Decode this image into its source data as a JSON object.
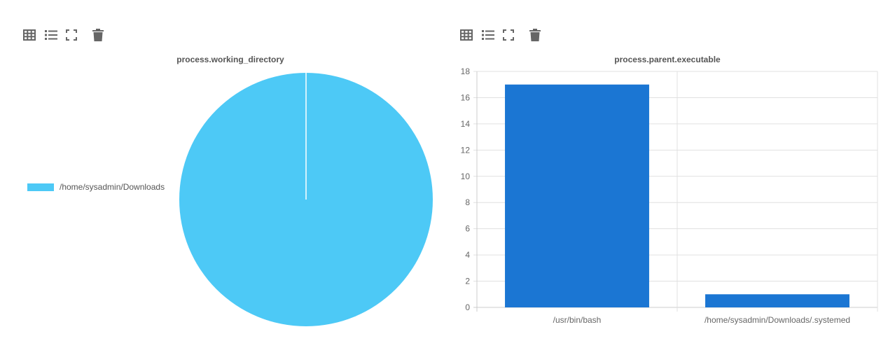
{
  "colors": {
    "pie": "#4dc9f6",
    "bar": "#1b76d3",
    "grid": "#e0e0e0",
    "axis": "#cccccc",
    "icon": "#666666"
  },
  "toolbar_icons": [
    "table-icon",
    "list-icon",
    "fullscreen-icon",
    "trash-icon"
  ],
  "left_panel": {
    "title": "process.working_directory",
    "legend": [
      {
        "label": "/home/sysadmin/Downloads",
        "color": "#4dc9f6"
      }
    ]
  },
  "right_panel": {
    "title": "process.parent.executable"
  },
  "chart_data": [
    {
      "type": "pie",
      "title": "process.working_directory",
      "categories": [
        "/home/sysadmin/Downloads"
      ],
      "values": [
        1
      ],
      "legend": "left"
    },
    {
      "type": "bar",
      "title": "process.parent.executable",
      "categories": [
        "/usr/bin/bash",
        "/home/sysadmin/Downloads/.systemed"
      ],
      "values": [
        17,
        1
      ],
      "ylim": [
        0,
        18
      ],
      "yticks": [
        0,
        2,
        4,
        6,
        8,
        10,
        12,
        14,
        16,
        18
      ],
      "grid": true
    }
  ]
}
